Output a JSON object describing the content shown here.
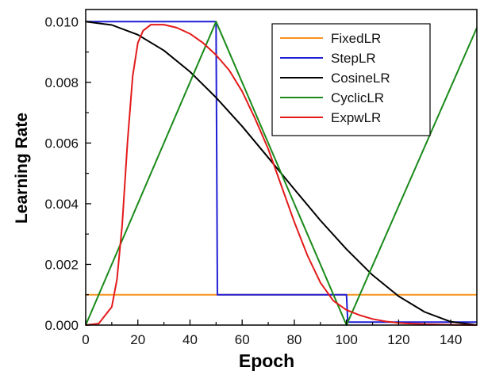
{
  "chart_data": {
    "type": "line",
    "title": "",
    "xlabel": "Epoch",
    "ylabel": "Learning Rate",
    "xlim": [
      0,
      150
    ],
    "ylim": [
      0,
      0.0104
    ],
    "x_ticks": [
      0,
      20,
      40,
      60,
      80,
      100,
      120,
      140
    ],
    "y_ticks": [
      0.0,
      0.002,
      0.004,
      0.006,
      0.008,
      0.01
    ],
    "x_tick_labels": [
      "0",
      "20",
      "40",
      "60",
      "80",
      "100",
      "120",
      "140"
    ],
    "y_tick_labels": [
      "0.000",
      "0.002",
      "0.004",
      "0.006",
      "0.008",
      "0.010"
    ],
    "grid": false,
    "legend_position": "top-right",
    "series": [
      {
        "name": "FixedLR",
        "color": "#f7941d",
        "x": [
          0,
          150
        ],
        "y": [
          0.001,
          0.001
        ]
      },
      {
        "name": "StepLR",
        "color": "#1f1fd6",
        "x": [
          0,
          50,
          50.5,
          100,
          100.5,
          150
        ],
        "y": [
          0.01,
          0.01,
          0.001,
          0.001,
          0.0001,
          0.0001
        ]
      },
      {
        "name": "CosineLR",
        "color": "#000000",
        "x": [
          0,
          10,
          20,
          30,
          40,
          50,
          60,
          70,
          80,
          90,
          100,
          110,
          120,
          130,
          140,
          150
        ],
        "y": [
          0.01,
          0.00989,
          0.00957,
          0.00905,
          0.00835,
          0.0075,
          0.00655,
          0.00552,
          0.00448,
          0.00345,
          0.0025,
          0.00165,
          0.00095,
          0.00043,
          0.00011,
          0.0
        ]
      },
      {
        "name": "CyclicLR",
        "color": "#1a8a1a",
        "x": [
          0,
          50,
          100,
          150
        ],
        "y": [
          0.0,
          0.01,
          0.0,
          0.0098
        ]
      },
      {
        "name": "ExpwLR",
        "color": "#e31a1a",
        "x": [
          0,
          5,
          10,
          12,
          14,
          16,
          18,
          20,
          22,
          25,
          30,
          35,
          40,
          45,
          50,
          55,
          60,
          65,
          70,
          75,
          80,
          85,
          90,
          95,
          100,
          105,
          110,
          115,
          120,
          130,
          140,
          150
        ],
        "y": [
          0.0,
          5e-05,
          0.0006,
          0.0015,
          0.0033,
          0.006,
          0.0082,
          0.0093,
          0.0097,
          0.0099,
          0.0099,
          0.0098,
          0.0096,
          0.0093,
          0.0089,
          0.0084,
          0.0077,
          0.0068,
          0.0058,
          0.0046,
          0.0034,
          0.0023,
          0.0014,
          0.0008,
          0.0005,
          0.00033,
          0.0002,
          0.00012,
          7e-05,
          3e-05,
          1e-05,
          0.0
        ]
      }
    ]
  }
}
